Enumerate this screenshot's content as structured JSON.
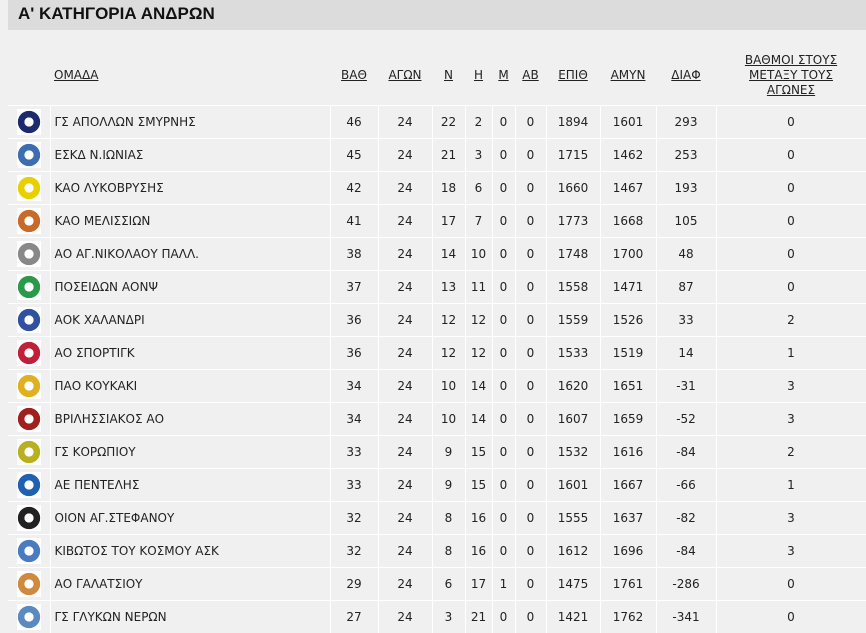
{
  "title": "Α' ΚΑΤΗΓΟΡΙΑ ΑΝΔΡΩΝ",
  "headers": {
    "team": "ΟΜΑΔΑ",
    "pts": "ΒΑΘ",
    "gp": "ΑΓΩΝ",
    "w": "Ν",
    "l": "Η",
    "m": "Μ",
    "ab": "ΑΒ",
    "pf": "ΕΠΙΘ",
    "pa": "ΑΜΥΝ",
    "diff": "ΔΙΑΦ",
    "h2h": "ΒΑΘΜΟΙ ΣΤΟΥΣ ΜΕΤΑΞΥ ΤΟΥΣ ΑΓΩΝΕΣ"
  },
  "rows": [
    {
      "team": "ΓΣ ΑΠΟΛΛΩΝ ΣΜΥΡΝΗΣ",
      "pts": "46",
      "gp": "24",
      "w": "22",
      "l": "2",
      "m": "0",
      "ab": "0",
      "pf": "1894",
      "pa": "1601",
      "diff": "293",
      "h2h": "0",
      "logo_color": "#1e2a6e"
    },
    {
      "team": "ΕΣΚΔ Ν.ΙΩΝΙΑΣ",
      "pts": "45",
      "gp": "24",
      "w": "21",
      "l": "3",
      "m": "0",
      "ab": "0",
      "pf": "1715",
      "pa": "1462",
      "diff": "253",
      "h2h": "0",
      "logo_color": "#3d6fb0"
    },
    {
      "team": "ΚΑΟ ΛΥΚΟΒΡΥΣΗΣ",
      "pts": "42",
      "gp": "24",
      "w": "18",
      "l": "6",
      "m": "0",
      "ab": "0",
      "pf": "1660",
      "pa": "1467",
      "diff": "193",
      "h2h": "0",
      "logo_color": "#e8d000"
    },
    {
      "team": "ΚΑΟ ΜΕΛΙΣΣΙΩΝ",
      "pts": "41",
      "gp": "24",
      "w": "17",
      "l": "7",
      "m": "0",
      "ab": "0",
      "pf": "1773",
      "pa": "1668",
      "diff": "105",
      "h2h": "0",
      "logo_color": "#c86a2a"
    },
    {
      "team": "ΑΟ ΑΓ.ΝΙΚΟΛΑΟΥ ΠΑΛΛ.",
      "pts": "38",
      "gp": "24",
      "w": "14",
      "l": "10",
      "m": "0",
      "ab": "0",
      "pf": "1748",
      "pa": "1700",
      "diff": "48",
      "h2h": "0",
      "logo_color": "#888888"
    },
    {
      "team": "ΠΟΣΕΙΔΩΝ ΑΟΝΨ",
      "pts": "37",
      "gp": "24",
      "w": "13",
      "l": "11",
      "m": "0",
      "ab": "0",
      "pf": "1558",
      "pa": "1471",
      "diff": "87",
      "h2h": "0",
      "logo_color": "#2a9a4a"
    },
    {
      "team": "ΑΟΚ ΧΑΛΑΝΔΡΙ",
      "pts": "36",
      "gp": "24",
      "w": "12",
      "l": "12",
      "m": "0",
      "ab": "0",
      "pf": "1559",
      "pa": "1526",
      "diff": "33",
      "h2h": "2",
      "logo_color": "#3050a0"
    },
    {
      "team": "ΑΟ ΣΠΟΡΤΙΓΚ",
      "pts": "36",
      "gp": "24",
      "w": "12",
      "l": "12",
      "m": "0",
      "ab": "0",
      "pf": "1533",
      "pa": "1519",
      "diff": "14",
      "h2h": "1",
      "logo_color": "#c0203a"
    },
    {
      "team": "ΠΑΟ ΚΟΥΚΑΚΙ",
      "pts": "34",
      "gp": "24",
      "w": "10",
      "l": "14",
      "m": "0",
      "ab": "0",
      "pf": "1620",
      "pa": "1651",
      "diff": "-31",
      "h2h": "3",
      "logo_color": "#e0b020"
    },
    {
      "team": "ΒΡΙΛΗΣΣΙΑΚΟΣ ΑΟ",
      "pts": "34",
      "gp": "24",
      "w": "10",
      "l": "14",
      "m": "0",
      "ab": "0",
      "pf": "1607",
      "pa": "1659",
      "diff": "-52",
      "h2h": "3",
      "logo_color": "#a02020"
    },
    {
      "team": "ΓΣ ΚΟΡΩΠΙΟΥ",
      "pts": "33",
      "gp": "24",
      "w": "9",
      "l": "15",
      "m": "0",
      "ab": "0",
      "pf": "1532",
      "pa": "1616",
      "diff": "-84",
      "h2h": "2",
      "logo_color": "#b8b020"
    },
    {
      "team": "ΑΕ ΠΕΝΤΕΛΗΣ",
      "pts": "33",
      "gp": "24",
      "w": "9",
      "l": "15",
      "m": "0",
      "ab": "0",
      "pf": "1601",
      "pa": "1667",
      "diff": "-66",
      "h2h": "1",
      "logo_color": "#2060b0"
    },
    {
      "team": "ΟΙΟΝ ΑΓ.ΣΤΕΦΑΝΟΥ",
      "pts": "32",
      "gp": "24",
      "w": "8",
      "l": "16",
      "m": "0",
      "ab": "0",
      "pf": "1555",
      "pa": "1637",
      "diff": "-82",
      "h2h": "3",
      "logo_color": "#222222"
    },
    {
      "team": "ΚΙΒΩΤΟΣ ΤΟΥ ΚΟΣΜΟΥ ΑΣΚ",
      "pts": "32",
      "gp": "24",
      "w": "8",
      "l": "16",
      "m": "0",
      "ab": "0",
      "pf": "1612",
      "pa": "1696",
      "diff": "-84",
      "h2h": "3",
      "logo_color": "#4a7ac0"
    },
    {
      "team": "ΑΟ ΓΑΛΑΤΣΙΟΥ",
      "pts": "29",
      "gp": "24",
      "w": "6",
      "l": "17",
      "m": "1",
      "ab": "0",
      "pf": "1475",
      "pa": "1761",
      "diff": "-286",
      "h2h": "0",
      "logo_color": "#d08a40"
    },
    {
      "team": "ΓΣ ΓΛΥΚΩΝ ΝΕΡΩΝ",
      "pts": "27",
      "gp": "24",
      "w": "3",
      "l": "21",
      "m": "0",
      "ab": "0",
      "pf": "1421",
      "pa": "1762",
      "diff": "-341",
      "h2h": "0",
      "logo_color": "#5a8ac0"
    }
  ]
}
